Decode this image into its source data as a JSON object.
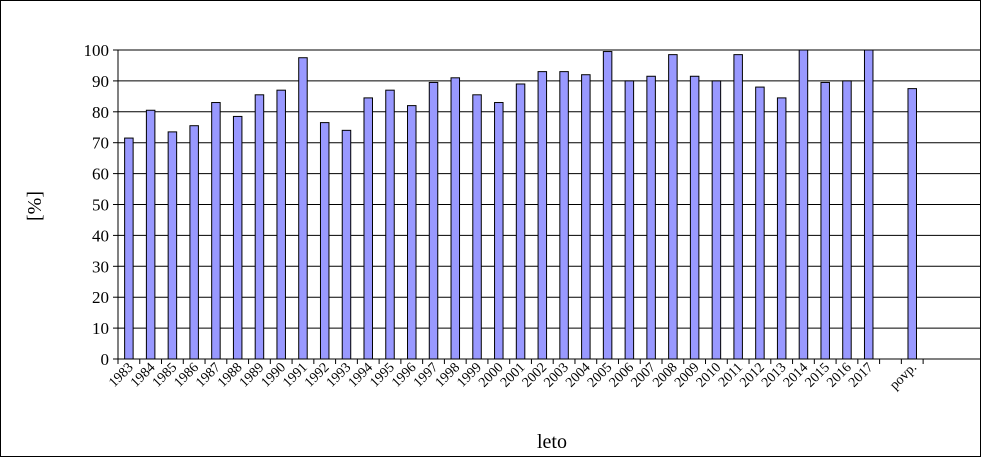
{
  "chart_data": {
    "type": "bar",
    "title": "",
    "xlabel": "leto",
    "ylabel": "[%]",
    "ylim": [
      0,
      100
    ],
    "yticks": [
      0,
      10,
      20,
      30,
      40,
      50,
      60,
      70,
      80,
      90,
      100
    ],
    "grid": true,
    "legend": "none",
    "bar_color": "#9999ff",
    "categories": [
      "1983",
      "1984",
      "1985",
      "1986",
      "1987",
      "1988",
      "1989",
      "1990",
      "1991",
      "1992",
      "1993",
      "1994",
      "1995",
      "1996",
      "1997",
      "1998",
      "1999",
      "2000",
      "2001",
      "2002",
      "2003",
      "2004",
      "2005",
      "2006",
      "2007",
      "2008",
      "2009",
      "2010",
      "2011",
      "2012",
      "2013",
      "2014",
      "2015",
      "2016",
      "2017",
      "",
      "povp."
    ],
    "values": [
      71.5,
      80.5,
      73.5,
      75.5,
      83,
      78.5,
      85.5,
      87,
      97.5,
      76.5,
      74,
      84.5,
      87,
      82,
      89.5,
      91,
      85.5,
      83,
      89,
      93,
      93,
      92,
      99.5,
      90,
      91.5,
      98.5,
      91.5,
      90,
      98.5,
      88,
      84.5,
      100,
      89.5,
      90,
      100,
      null,
      87.5
    ]
  }
}
